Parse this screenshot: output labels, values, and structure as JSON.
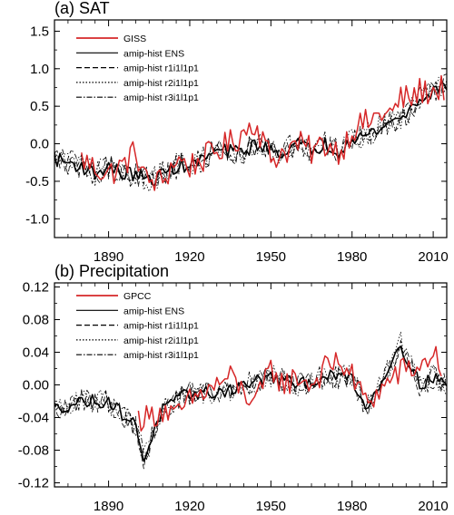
{
  "chart_data": [
    {
      "type": "line",
      "title": "(a) SAT",
      "xlim": [
        1870,
        2015
      ],
      "ylim": [
        -1.25,
        1.65
      ],
      "xticks": [
        1890,
        1920,
        1950,
        1980,
        2010
      ],
      "xtick_labels": [
        "1890",
        "1920",
        "1950",
        "1980",
        "2010"
      ],
      "yticks": [
        -1.0,
        -0.5,
        0.0,
        0.5,
        1.0,
        1.5
      ],
      "ytick_labels": [
        "-1.0",
        "-0.5",
        "0.0",
        "0.5",
        "1.0",
        "1.5"
      ],
      "legend_position": "top-left",
      "series": [
        {
          "name": "GISS",
          "color": "#d62728",
          "style": "solid",
          "anchors": [
            [
              1880,
              -0.2
            ],
            [
              1884,
              -0.3
            ],
            [
              1890,
              -0.4
            ],
            [
              1895,
              -0.3
            ],
            [
              1900,
              -0.1
            ],
            [
              1904,
              -0.5
            ],
            [
              1910,
              -0.5
            ],
            [
              1915,
              -0.2
            ],
            [
              1920,
              -0.3
            ],
            [
              1925,
              -0.2
            ],
            [
              1930,
              -0.1
            ],
            [
              1937,
              0.05
            ],
            [
              1941,
              0.2
            ],
            [
              1944,
              0.3
            ],
            [
              1950,
              -0.2
            ],
            [
              1955,
              -0.1
            ],
            [
              1960,
              0.0
            ],
            [
              1965,
              -0.1
            ],
            [
              1970,
              0.0
            ],
            [
              1976,
              -0.1
            ],
            [
              1980,
              0.2
            ],
            [
              1987,
              0.3
            ],
            [
              1990,
              0.4
            ],
            [
              1995,
              0.4
            ],
            [
              1998,
              0.6
            ],
            [
              2002,
              0.6
            ],
            [
              2005,
              0.7
            ],
            [
              2010,
              0.7
            ],
            [
              2014,
              0.75
            ]
          ]
        },
        {
          "name": "amip-hist ENS",
          "color": "#000000",
          "style": "solid",
          "anchors": [
            [
              1870,
              -0.2
            ],
            [
              1880,
              -0.3
            ],
            [
              1885,
              -0.4
            ],
            [
              1890,
              -0.3
            ],
            [
              1895,
              -0.4
            ],
            [
              1900,
              -0.4
            ],
            [
              1905,
              -0.5
            ],
            [
              1910,
              -0.4
            ],
            [
              1915,
              -0.3
            ],
            [
              1920,
              -0.3
            ],
            [
              1925,
              -0.2
            ],
            [
              1930,
              -0.1
            ],
            [
              1935,
              -0.1
            ],
            [
              1940,
              -0.1
            ],
            [
              1945,
              0.0
            ],
            [
              1950,
              -0.1
            ],
            [
              1955,
              -0.1
            ],
            [
              1960,
              0.0
            ],
            [
              1965,
              -0.1
            ],
            [
              1970,
              0.0
            ],
            [
              1975,
              -0.1
            ],
            [
              1980,
              0.1
            ],
            [
              1985,
              0.1
            ],
            [
              1990,
              0.2
            ],
            [
              1995,
              0.3
            ],
            [
              2000,
              0.4
            ],
            [
              2005,
              0.6
            ],
            [
              2010,
              0.7
            ],
            [
              2015,
              0.8
            ]
          ]
        },
        {
          "name": "amip-hist r1i1l1p1",
          "color": "#000000",
          "style": "dash",
          "anchors": [
            [
              1870,
              -0.2
            ],
            [
              1880,
              -0.3
            ],
            [
              1885,
              -0.4
            ],
            [
              1890,
              -0.3
            ],
            [
              1895,
              -0.4
            ],
            [
              1900,
              -0.4
            ],
            [
              1905,
              -0.5
            ],
            [
              1910,
              -0.4
            ],
            [
              1915,
              -0.3
            ],
            [
              1920,
              -0.3
            ],
            [
              1925,
              -0.2
            ],
            [
              1930,
              -0.1
            ],
            [
              1935,
              -0.1
            ],
            [
              1940,
              -0.1
            ],
            [
              1945,
              0.0
            ],
            [
              1950,
              -0.1
            ],
            [
              1955,
              -0.1
            ],
            [
              1960,
              0.0
            ],
            [
              1965,
              -0.1
            ],
            [
              1970,
              0.0
            ],
            [
              1975,
              -0.1
            ],
            [
              1980,
              0.1
            ],
            [
              1985,
              0.1
            ],
            [
              1990,
              0.2
            ],
            [
              1995,
              0.3
            ],
            [
              2000,
              0.4
            ],
            [
              2005,
              0.6
            ],
            [
              2010,
              0.7
            ],
            [
              2015,
              0.8
            ]
          ]
        },
        {
          "name": "amip-hist r2i1l1p1",
          "color": "#000000",
          "style": "dot",
          "anchors": [
            [
              1870,
              -0.2
            ],
            [
              1880,
              -0.3
            ],
            [
              1885,
              -0.4
            ],
            [
              1890,
              -0.3
            ],
            [
              1895,
              -0.4
            ],
            [
              1900,
              -0.4
            ],
            [
              1905,
              -0.5
            ],
            [
              1910,
              -0.4
            ],
            [
              1915,
              -0.3
            ],
            [
              1920,
              -0.3
            ],
            [
              1925,
              -0.2
            ],
            [
              1930,
              -0.1
            ],
            [
              1935,
              -0.1
            ],
            [
              1940,
              -0.1
            ],
            [
              1945,
              0.0
            ],
            [
              1950,
              -0.1
            ],
            [
              1955,
              -0.1
            ],
            [
              1960,
              0.0
            ],
            [
              1965,
              -0.1
            ],
            [
              1970,
              0.0
            ],
            [
              1975,
              -0.1
            ],
            [
              1980,
              0.1
            ],
            [
              1985,
              0.1
            ],
            [
              1990,
              0.2
            ],
            [
              1995,
              0.3
            ],
            [
              2000,
              0.4
            ],
            [
              2005,
              0.6
            ],
            [
              2010,
              0.7
            ],
            [
              2015,
              0.8
            ]
          ]
        },
        {
          "name": "amip-hist r3i1l1p1",
          "color": "#000000",
          "style": "dashdot",
          "anchors": [
            [
              1870,
              -0.2
            ],
            [
              1880,
              -0.3
            ],
            [
              1885,
              -0.4
            ],
            [
              1890,
              -0.3
            ],
            [
              1895,
              -0.4
            ],
            [
              1900,
              -0.4
            ],
            [
              1905,
              -0.5
            ],
            [
              1910,
              -0.4
            ],
            [
              1915,
              -0.3
            ],
            [
              1920,
              -0.3
            ],
            [
              1925,
              -0.2
            ],
            [
              1930,
              -0.1
            ],
            [
              1935,
              -0.1
            ],
            [
              1940,
              -0.1
            ],
            [
              1945,
              0.0
            ],
            [
              1950,
              -0.1
            ],
            [
              1955,
              -0.1
            ],
            [
              1960,
              0.0
            ],
            [
              1965,
              -0.1
            ],
            [
              1970,
              0.0
            ],
            [
              1975,
              -0.1
            ],
            [
              1980,
              0.1
            ],
            [
              1985,
              0.1
            ],
            [
              1990,
              0.2
            ],
            [
              1995,
              0.3
            ],
            [
              2000,
              0.4
            ],
            [
              2005,
              0.6
            ],
            [
              2010,
              0.7
            ],
            [
              2015,
              0.8
            ]
          ]
        }
      ]
    },
    {
      "type": "line",
      "title": "(b) Precipitation",
      "xlim": [
        1870,
        2015
      ],
      "ylim": [
        -0.125,
        0.125
      ],
      "xticks": [
        1890,
        1920,
        1950,
        1980,
        2010
      ],
      "xtick_labels": [
        "1890",
        "1920",
        "1950",
        "1980",
        "2010"
      ],
      "yticks": [
        -0.12,
        -0.08,
        -0.04,
        0.0,
        0.04,
        0.08,
        0.12
      ],
      "ytick_labels": [
        "-0.12",
        "-0.08",
        "-0.04",
        "0.00",
        "0.04",
        "0.08",
        "0.12"
      ],
      "legend_position": "top-left",
      "series": [
        {
          "name": "GPCC",
          "color": "#d62728",
          "style": "solid",
          "anchors": [
            [
              1901,
              -0.04
            ],
            [
              1905,
              -0.04
            ],
            [
              1910,
              -0.03
            ],
            [
              1915,
              -0.04
            ],
            [
              1920,
              -0.02
            ],
            [
              1925,
              -0.01
            ],
            [
              1930,
              0.0
            ],
            [
              1935,
              0.01
            ],
            [
              1940,
              -0.01
            ],
            [
              1945,
              -0.02
            ],
            [
              1950,
              0.02
            ],
            [
              1955,
              0.0
            ],
            [
              1960,
              0.01
            ],
            [
              1965,
              0.0
            ],
            [
              1970,
              0.02
            ],
            [
              1975,
              0.03
            ],
            [
              1980,
              0.01
            ],
            [
              1985,
              -0.02
            ],
            [
              1990,
              -0.01
            ],
            [
              1995,
              0.01
            ],
            [
              2000,
              0.02
            ],
            [
              2005,
              0.02
            ],
            [
              2010,
              0.04
            ],
            [
              2013,
              0.02
            ]
          ]
        },
        {
          "name": "amip-hist ENS",
          "color": "#000000",
          "style": "solid",
          "anchors": [
            [
              1870,
              -0.03
            ],
            [
              1880,
              -0.02
            ],
            [
              1890,
              -0.02
            ],
            [
              1900,
              -0.05
            ],
            [
              1903,
              -0.09
            ],
            [
              1910,
              -0.03
            ],
            [
              1920,
              -0.01
            ],
            [
              1930,
              -0.01
            ],
            [
              1940,
              0.0
            ],
            [
              1950,
              0.01
            ],
            [
              1960,
              0.0
            ],
            [
              1970,
              0.01
            ],
            [
              1980,
              0.01
            ],
            [
              1985,
              -0.03
            ],
            [
              1990,
              0.0
            ],
            [
              1998,
              0.05
            ],
            [
              2005,
              0.0
            ],
            [
              2010,
              0.01
            ],
            [
              2015,
              0.0
            ]
          ]
        },
        {
          "name": "amip-hist r1i1l1p1",
          "color": "#000000",
          "style": "dash",
          "anchors": [
            [
              1870,
              -0.03
            ],
            [
              1880,
              -0.02
            ],
            [
              1890,
              -0.02
            ],
            [
              1900,
              -0.05
            ],
            [
              1903,
              -0.09
            ],
            [
              1910,
              -0.03
            ],
            [
              1920,
              -0.01
            ],
            [
              1930,
              -0.01
            ],
            [
              1940,
              0.0
            ],
            [
              1950,
              0.01
            ],
            [
              1960,
              0.0
            ],
            [
              1970,
              0.01
            ],
            [
              1980,
              0.01
            ],
            [
              1985,
              -0.03
            ],
            [
              1990,
              0.0
            ],
            [
              1998,
              0.05
            ],
            [
              2005,
              0.0
            ],
            [
              2010,
              0.01
            ],
            [
              2015,
              0.0
            ]
          ]
        },
        {
          "name": "amip-hist r2i1l1p1",
          "color": "#000000",
          "style": "dot",
          "anchors": [
            [
              1870,
              -0.03
            ],
            [
              1880,
              -0.02
            ],
            [
              1890,
              -0.02
            ],
            [
              1900,
              -0.05
            ],
            [
              1903,
              -0.09
            ],
            [
              1910,
              -0.03
            ],
            [
              1920,
              -0.01
            ],
            [
              1930,
              -0.01
            ],
            [
              1940,
              0.0
            ],
            [
              1950,
              0.01
            ],
            [
              1960,
              0.0
            ],
            [
              1970,
              0.01
            ],
            [
              1980,
              0.01
            ],
            [
              1985,
              -0.03
            ],
            [
              1990,
              0.0
            ],
            [
              1998,
              0.05
            ],
            [
              2005,
              0.0
            ],
            [
              2010,
              0.01
            ],
            [
              2015,
              0.0
            ]
          ]
        },
        {
          "name": "amip-hist r3i1l1p1",
          "color": "#000000",
          "style": "dashdot",
          "anchors": [
            [
              1870,
              -0.03
            ],
            [
              1880,
              -0.02
            ],
            [
              1890,
              -0.02
            ],
            [
              1900,
              -0.05
            ],
            [
              1903,
              -0.09
            ],
            [
              1910,
              -0.03
            ],
            [
              1920,
              -0.01
            ],
            [
              1930,
              -0.01
            ],
            [
              1940,
              0.0
            ],
            [
              1950,
              0.01
            ],
            [
              1960,
              0.0
            ],
            [
              1970,
              0.01
            ],
            [
              1980,
              0.01
            ],
            [
              1985,
              -0.03
            ],
            [
              1990,
              0.0
            ],
            [
              1998,
              0.05
            ],
            [
              2005,
              0.0
            ],
            [
              2010,
              0.01
            ],
            [
              2015,
              0.0
            ]
          ]
        }
      ]
    }
  ]
}
